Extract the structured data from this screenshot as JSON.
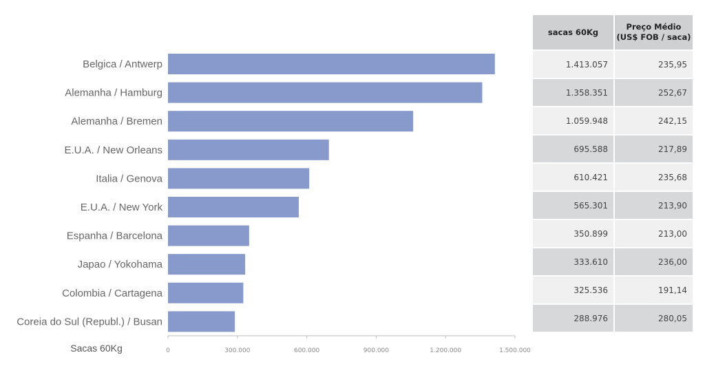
{
  "chart_data": {
    "type": "bar",
    "orientation": "horizontal",
    "categories": [
      "Belgica / Antwerp",
      "Alemanha / Hamburg",
      "Alemanha / Bremen",
      "E.U.A. / New Orleans",
      "Italia / Genova",
      "E.U.A. / New York",
      "Espanha / Barcelona",
      "Japao / Yokohama",
      "Colombia / Cartagena",
      "Coreia do Sul (Republ.) / Busan"
    ],
    "values": [
      1413057,
      1358351,
      1059948,
      695588,
      610421,
      565301,
      350899,
      333610,
      325536,
      288976
    ],
    "ylabel": "Sacas 60Kg",
    "xlim": [
      0,
      1500000
    ],
    "ticks": [
      {
        "value": 0,
        "label": "0"
      },
      {
        "value": 300000,
        "label": "300.000"
      },
      {
        "value": 600000,
        "label": "600.000"
      },
      {
        "value": 900000,
        "label": "900.000"
      },
      {
        "value": 1200000,
        "label": "1.200.000"
      },
      {
        "value": 1500000,
        "label": "1.500.000"
      }
    ],
    "bar_color": "#8899cc",
    "grid": false
  },
  "table": {
    "headers": [
      "sacas 60Kg",
      "Preço Médio",
      "(US$ FOB / saca)"
    ],
    "rows": [
      {
        "sacas": "1.413.057",
        "preco": "235,95"
      },
      {
        "sacas": "1.358.351",
        "preco": "252,67"
      },
      {
        "sacas": "1.059.948",
        "preco": "242,15"
      },
      {
        "sacas": "695.588",
        "preco": "217,89"
      },
      {
        "sacas": "610.421",
        "preco": "235,68"
      },
      {
        "sacas": "565.301",
        "preco": "213,90"
      },
      {
        "sacas": "350.899",
        "preco": "213,00"
      },
      {
        "sacas": "333.610",
        "preco": "236,00"
      },
      {
        "sacas": "325.536",
        "preco": "191,14"
      },
      {
        "sacas": "288.976",
        "preco": "280,05"
      }
    ]
  }
}
